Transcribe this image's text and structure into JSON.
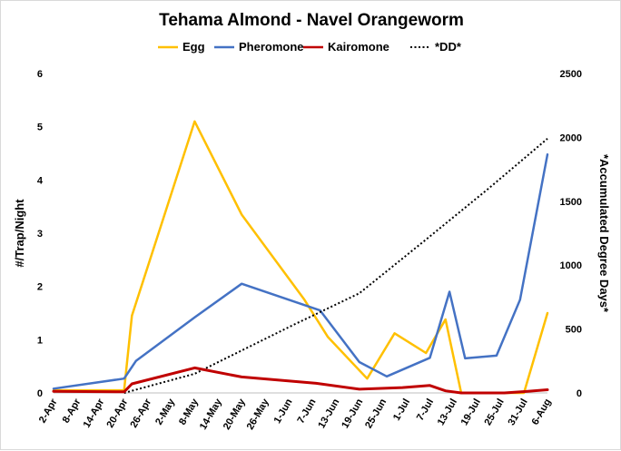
{
  "chart_data": {
    "type": "line",
    "title": "Tehama Almond - Navel Orangeworm",
    "ylabel": "#/Trap/Night",
    "y2label": "*Accumulated Degree Days*",
    "ylim": [
      0,
      6
    ],
    "y2lim": [
      0,
      2500
    ],
    "yticks": [
      "0",
      "1",
      "2",
      "3",
      "4",
      "5",
      "6"
    ],
    "y2ticks": [
      "0",
      "500",
      "1000",
      "1500",
      "2000",
      "2500"
    ],
    "x_tick_labels": [
      "2-Apr",
      "8-Apr",
      "14-Apr",
      "20-Apr",
      "26-Apr",
      "2-May",
      "8-May",
      "14-May",
      "20-May",
      "26-May",
      "1-Jun",
      "7-Jun",
      "13-Jun",
      "19-Jun",
      "25-Jun",
      "1-Jul",
      "7-Jul",
      "13-Jul",
      "19-Jul",
      "25-Jul",
      "31-Jul",
      "6-Aug"
    ],
    "legend_position": "top",
    "grid": false,
    "series": [
      {
        "name": "Egg",
        "axis": "left",
        "color": "#FFC000",
        "style": "solid",
        "points": [
          [
            "2-Apr",
            0.05
          ],
          [
            "20-Apr",
            0.05
          ],
          [
            "22-Apr",
            1.45
          ],
          [
            "8-May",
            5.1
          ],
          [
            "20-May",
            3.35
          ],
          [
            "5-Jun",
            1.75
          ],
          [
            "11-Jun",
            1.05
          ],
          [
            "21-Jun",
            0.27
          ],
          [
            "28-Jun",
            1.12
          ],
          [
            "6-Jul",
            0.75
          ],
          [
            "11-Jul",
            1.38
          ],
          [
            "15-Jul",
            0.0
          ],
          [
            "26-Jul",
            0.0
          ],
          [
            "31-Jul",
            0.0
          ],
          [
            "6-Aug",
            1.5
          ]
        ]
      },
      {
        "name": "Pheromone",
        "axis": "left",
        "color": "#4472C4",
        "style": "solid",
        "points": [
          [
            "2-Apr",
            0.08
          ],
          [
            "20-Apr",
            0.27
          ],
          [
            "23-Apr",
            0.6
          ],
          [
            "8-May",
            1.42
          ],
          [
            "20-May",
            2.05
          ],
          [
            "9-Jun",
            1.55
          ],
          [
            "19-Jun",
            0.58
          ],
          [
            "26-Jun",
            0.31
          ],
          [
            "7-Jul",
            0.66
          ],
          [
            "12-Jul",
            1.9
          ],
          [
            "16-Jul",
            0.65
          ],
          [
            "24-Jul",
            0.7
          ],
          [
            "30-Jul",
            1.75
          ],
          [
            "6-Aug",
            4.48
          ]
        ]
      },
      {
        "name": "Kairomone",
        "axis": "left",
        "color": "#C00000",
        "style": "solid",
        "points": [
          [
            "2-Apr",
            0.03
          ],
          [
            "20-Apr",
            0.02
          ],
          [
            "22-Apr",
            0.17
          ],
          [
            "8-May",
            0.47
          ],
          [
            "20-May",
            0.3
          ],
          [
            "8-Jun",
            0.18
          ],
          [
            "19-Jun",
            0.07
          ],
          [
            "30-Jun",
            0.1
          ],
          [
            "7-Jul",
            0.14
          ],
          [
            "11-Jul",
            0.04
          ],
          [
            "15-Jul",
            0.0
          ],
          [
            "26-Jul",
            0.0
          ],
          [
            "1-Aug",
            0.03
          ],
          [
            "6-Aug",
            0.06
          ]
        ]
      },
      {
        "name": "*DD*",
        "axis": "right",
        "color": "#000000",
        "style": "dotted",
        "points": [
          [
            "20-Apr",
            0
          ],
          [
            "8-May",
            150
          ],
          [
            "2-Jun",
            530
          ],
          [
            "19-Jun",
            780
          ],
          [
            "6-Jul",
            1200
          ],
          [
            "22-Jul",
            1600
          ],
          [
            "6-Aug",
            1990
          ]
        ]
      }
    ]
  }
}
